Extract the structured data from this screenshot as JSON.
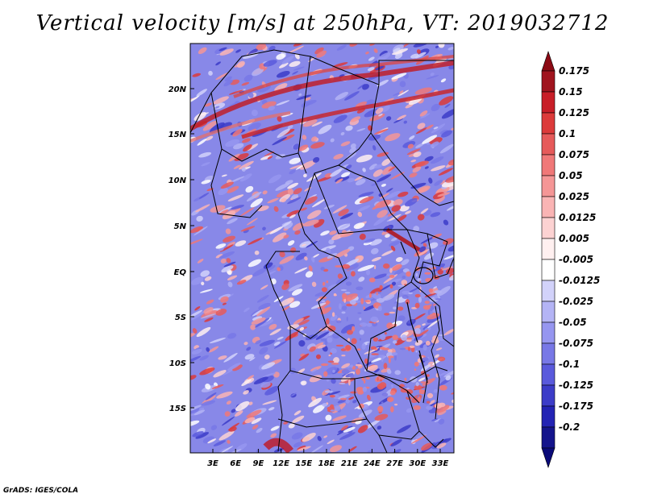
{
  "title": "Vertical velocity [m/s] at 250hPa, VT: 2019032712",
  "credit": "GrADS: IGES/COLA",
  "lat_ticks": [
    "20N",
    "15N",
    "10N",
    "5N",
    "EQ",
    "5S",
    "10S",
    "15S"
  ],
  "lon_ticks": [
    "3E",
    "6E",
    "9E",
    "12E",
    "15E",
    "18E",
    "21E",
    "24E",
    "27E",
    "30E",
    "33E"
  ],
  "colorbar": {
    "labels": [
      "0.175",
      "0.15",
      "0.125",
      "0.1",
      "0.075",
      "0.05",
      "0.025",
      "0.0125",
      "0.005",
      "-0.005",
      "-0.0125",
      "-0.025",
      "-0.05",
      "-0.075",
      "-0.1",
      "-0.125",
      "-0.175",
      "-0.2"
    ],
    "colors": [
      "#a0141e",
      "#c81e28",
      "#dc3a3a",
      "#e65a5a",
      "#f07878",
      "#f59696",
      "#fab4b4",
      "#fcd2d2",
      "#fff0f0",
      "#ffffff",
      "#d2d2fa",
      "#b4b4f5",
      "#9696f0",
      "#7878e6",
      "#5a5adc",
      "#3c3cc8",
      "#2323b4",
      "#14148c"
    ],
    "top_arrow_color": "#8c0a14",
    "bottom_arrow_color": "#0a0a78"
  }
}
